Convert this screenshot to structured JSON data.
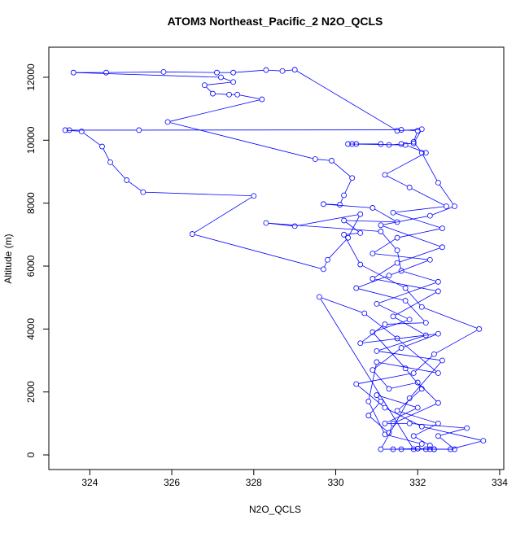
{
  "chart_data": {
    "type": "line",
    "title": "ATOM3 Northeast_Pacific_2 N2O_QCLS",
    "x_label": "N2O_QCLS",
    "y_label": "Altitude (m)",
    "color": "blue",
    "x": [
      331.6,
      332.2,
      332.4,
      332.0,
      331.4,
      332.9,
      332.5,
      333.2,
      331.8,
      331.2,
      332.0,
      331.0,
      331.1,
      330.8,
      331.3,
      331.4,
      332.5,
      332.0,
      331.3,
      330.9,
      331.6,
      332.5,
      330.6,
      331.2,
      332.2,
      331.7,
      330.5,
      331.3,
      332.3,
      330.9,
      331.5,
      332.6,
      331.4,
      332.7,
      331.8,
      331.2,
      332.2,
      331.7,
      330.3,
      330.4,
      330.5,
      331.1,
      331.3,
      331.6,
      331.9,
      332.1,
      331.5,
      329.0,
      328.7,
      328.3,
      327.5,
      327.1,
      325.8,
      324.4,
      323.6,
      327.2,
      327.5,
      326.8,
      327.0,
      327.4,
      327.6,
      328.2,
      325.9,
      329.5,
      329.9,
      330.4,
      330.2,
      330.1,
      329.7,
      330.9,
      331.5,
      330.2,
      330.6,
      330.2,
      330.6,
      331.7,
      332.1,
      333.5,
      332.4,
      331.9,
      330.5,
      331.2,
      332.1,
      333.6,
      332.8,
      332.3,
      331.1,
      331.8,
      332.6,
      331.0,
      332.2,
      331.4,
      332.5,
      330.9,
      331.5,
      332.6,
      331.1,
      332.3,
      332.9,
      332.5,
      332.1,
      331.9,
      332.0,
      331.6,
      325.2,
      323.5,
      323.4,
      323.8,
      324.3,
      324.5,
      324.9,
      325.3,
      328.0,
      326.5,
      329.7,
      329.8,
      330.3,
      330.6,
      329.0,
      328.3,
      331.1,
      331.5,
      331.6,
      332.5,
      331.0,
      331.8,
      330.9,
      331.7,
      332.1,
      331.5,
      332.5,
      331.9,
      332.3,
      332.4,
      331.9,
      329.6,
      330.7,
      331.5,
      332.5,
      331.0,
      330.8,
      331.2,
      332.1,
      332.0
    ],
    "values": [
      180,
      180,
      180,
      200,
      180,
      180,
      600,
      850,
      1000,
      1000,
      1500,
      1900,
      1700,
      1250,
      700,
      1000,
      1650,
      2300,
      2100,
      2700,
      3400,
      3850,
      3550,
      4150,
      4200,
      4900,
      5300,
      5700,
      6200,
      6400,
      6900,
      7200,
      7700,
      7900,
      8500,
      8900,
      9600,
      9850,
      9880,
      9880,
      9880,
      9880,
      9850,
      9880,
      9900,
      10350,
      10300,
      12240,
      12200,
      12230,
      12150,
      12150,
      12170,
      12150,
      12150,
      12000,
      11850,
      11750,
      11480,
      11450,
      11450,
      11300,
      10580,
      9400,
      9350,
      8800,
      8250,
      7950,
      7970,
      7850,
      7400,
      7450,
      7050,
      7000,
      6050,
      5300,
      4700,
      4000,
      3200,
      2600,
      2250,
      1500,
      900,
      450,
      180,
      180,
      180,
      1800,
      3000,
      3300,
      3800,
      4400,
      5200,
      5600,
      6100,
      6600,
      7300,
      7600,
      7900,
      8650,
      9600,
      9950,
      10300,
      10330,
      10320,
      10320,
      10320,
      10280,
      9800,
      9300,
      8730,
      8350,
      8230,
      7020,
      5900,
      6200,
      6900,
      7650,
      7270,
      7370,
      7100,
      6500,
      5850,
      5500,
      4800,
      4300,
      3900,
      2750,
      2100,
      1400,
      1000,
      600,
      300,
      180,
      180,
      5020,
      4500,
      3700,
      2600,
      2950,
      1700,
      650,
      350,
      200
    ],
    "xlim": [
      323.0,
      334.1
    ],
    "ylim": [
      -465,
      12956
    ],
    "xticks": [
      324,
      326,
      328,
      330,
      332,
      334
    ],
    "yticks": [
      0,
      2000,
      4000,
      6000,
      8000,
      10000,
      12000
    ]
  }
}
